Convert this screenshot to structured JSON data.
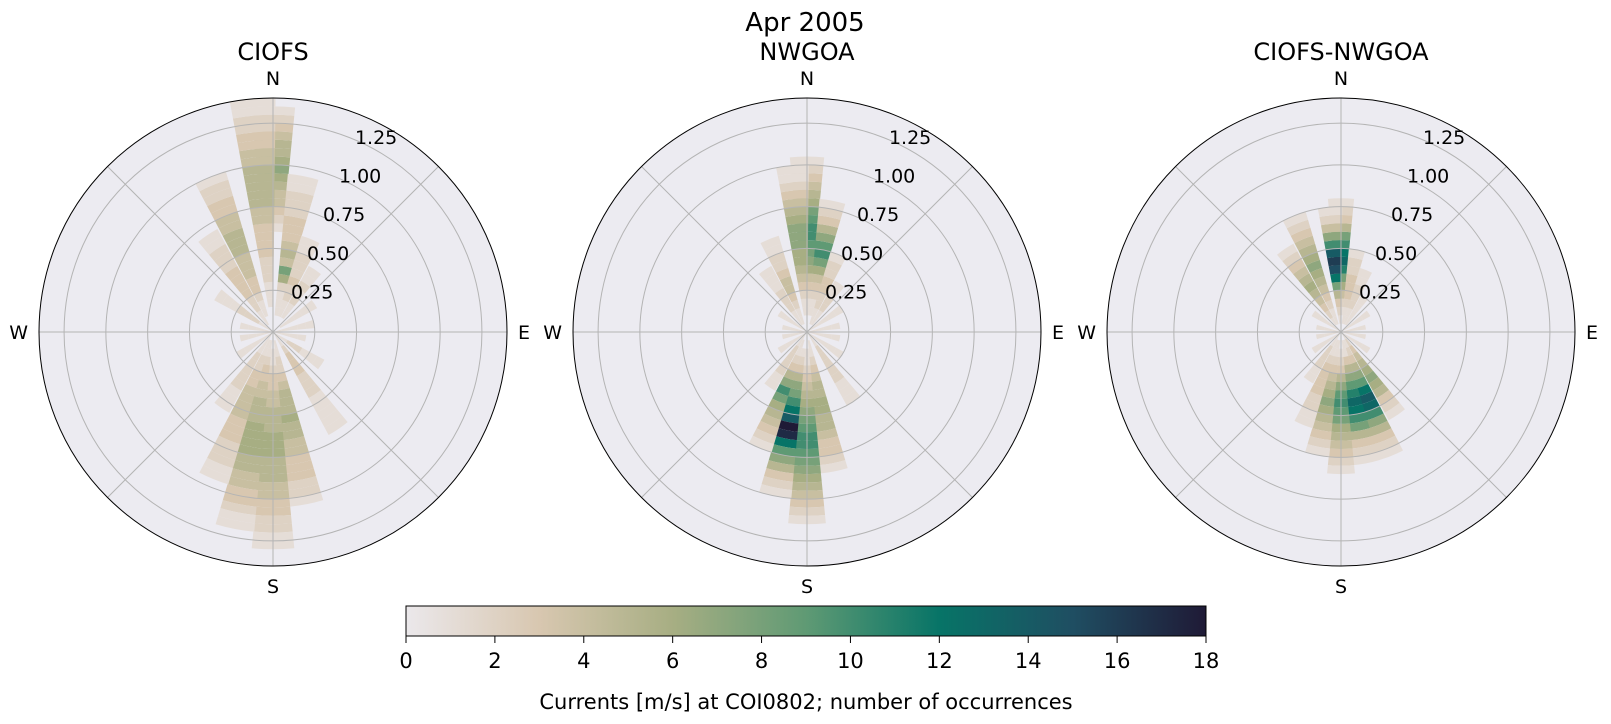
{
  "figure": {
    "suptitle": "Apr 2005"
  },
  "chart_data": [
    {
      "type": "polar-bar",
      "title": "CIOFS",
      "direction_labels": [
        "N",
        "E",
        "S",
        "W"
      ],
      "r_ticks": [
        0.25,
        0.5,
        0.75,
        1.0,
        1.25
      ],
      "r_tick_labels": [
        "0.25",
        "0.50",
        "0.75",
        "1.00",
        "1.25"
      ],
      "rlim": [
        0,
        1.4
      ],
      "grid": true,
      "bin_width_deg": 11.25,
      "speed_bin_width": 0.05,
      "counts_by_direction_deg": {
        "0": [
          0,
          0,
          0,
          0,
          0,
          0,
          0,
          0,
          0,
          0,
          0,
          0,
          1,
          2,
          3,
          4,
          4,
          5,
          6,
          7,
          6,
          5,
          5,
          4,
          3,
          2,
          1
        ],
        "355": [
          0,
          0,
          0,
          1,
          1,
          1,
          2,
          2,
          2,
          3,
          3,
          3,
          3,
          4,
          4,
          5,
          5,
          5,
          5,
          5,
          4,
          4,
          3,
          3,
          2,
          2,
          1,
          1
        ],
        "11": [
          0,
          0,
          1,
          1,
          1,
          2,
          6,
          8,
          4,
          5,
          4,
          3,
          3,
          3,
          2,
          2,
          2,
          1,
          1
        ],
        "22": [
          0,
          0,
          1,
          1,
          2,
          2,
          3,
          2,
          2,
          2,
          1,
          1
        ],
        "34": [
          0,
          0,
          1,
          1,
          2,
          1,
          2,
          1,
          1
        ],
        "56": [
          0,
          1,
          1,
          1,
          1,
          1
        ],
        "79": [
          1,
          1,
          1,
          1,
          1
        ],
        "101": [
          1,
          1,
          1,
          1
        ],
        "124": [
          1,
          1,
          2,
          2,
          1,
          1,
          1
        ],
        "146": [
          1,
          1,
          2,
          3,
          3,
          3,
          2,
          2,
          2,
          1,
          1,
          1,
          1,
          1
        ],
        "169": [
          0,
          1,
          1,
          2,
          2,
          3,
          4,
          5,
          5,
          5,
          6,
          5,
          5,
          4,
          4,
          3,
          3,
          3,
          2,
          2,
          1
        ],
        "180": [
          0,
          0,
          1,
          1,
          2,
          3,
          3,
          4,
          4,
          5,
          5,
          5,
          6,
          6,
          6,
          5,
          5,
          5,
          4,
          4,
          3,
          3,
          2,
          2,
          1,
          1
        ],
        "191": [
          0,
          1,
          1,
          2,
          3,
          3,
          4,
          4,
          5,
          5,
          5,
          6,
          6,
          6,
          6,
          5,
          5,
          4,
          4,
          3,
          3,
          2,
          1,
          1
        ],
        "202": [
          0,
          1,
          1,
          2,
          2,
          3,
          3,
          4,
          4,
          4,
          4,
          3,
          3,
          3,
          2,
          2,
          2,
          1,
          1
        ],
        "214": [
          1,
          1,
          1,
          2,
          2,
          2,
          2,
          2,
          1,
          1,
          1
        ],
        "236": [
          1,
          1,
          1,
          1,
          1
        ],
        "259": [
          1,
          1,
          1,
          1
        ],
        "281": [
          1,
          1,
          1,
          1
        ],
        "304": [
          1,
          1,
          2,
          2,
          2,
          1,
          1,
          1
        ],
        "326": [
          0,
          1,
          1,
          2,
          2,
          3,
          3,
          3,
          3,
          2,
          2,
          2,
          1,
          1
        ],
        "338": [
          0,
          0,
          1,
          1,
          2,
          3,
          3,
          4,
          4,
          4,
          5,
          5,
          5,
          4,
          4,
          3,
          3,
          2,
          2,
          1
        ]
      }
    },
    {
      "type": "polar-bar",
      "title": "NWGOA",
      "direction_labels": [
        "N",
        "E",
        "S",
        "W"
      ],
      "r_ticks": [
        0.25,
        0.5,
        0.75,
        1.0,
        1.25
      ],
      "r_tick_labels": [
        "0.25",
        "0.50",
        "0.75",
        "1.00",
        "1.25"
      ],
      "rlim": [
        0,
        1.4
      ],
      "grid": true,
      "bin_width_deg": 11.25,
      "speed_bin_width": 0.05,
      "counts_by_direction_deg": {
        "0": [
          0,
          0,
          1,
          1,
          2,
          3,
          4,
          6,
          7,
          8,
          9,
          10,
          10,
          9,
          8,
          6,
          5,
          4,
          3,
          2,
          1
        ],
        "355": [
          0,
          0,
          1,
          1,
          2,
          3,
          4,
          5,
          6,
          6,
          7,
          7,
          7,
          6,
          5,
          4,
          3,
          2,
          1,
          1
        ],
        "11": [
          0,
          0,
          1,
          1,
          2,
          3,
          4,
          6,
          8,
          10,
          9,
          7,
          5,
          3,
          2,
          1
        ],
        "22": [
          0,
          1,
          1,
          2,
          2,
          3,
          3,
          2,
          2,
          1
        ],
        "34": [
          0,
          1,
          1,
          2,
          2,
          1,
          1
        ],
        "56": [
          1,
          1,
          1,
          1,
          1
        ],
        "79": [
          1,
          1,
          1,
          1
        ],
        "101": [
          1,
          1,
          1,
          1
        ],
        "124": [
          1,
          1,
          1,
          1,
          1
        ],
        "146": [
          1,
          1,
          2,
          2,
          2,
          2,
          2,
          1,
          1,
          1
        ],
        "169": [
          0,
          1,
          1,
          2,
          3,
          4,
          5,
          5,
          6,
          6,
          5,
          5,
          4,
          3,
          3,
          2,
          1
        ],
        "180": [
          0,
          0,
          1,
          1,
          2,
          3,
          4,
          5,
          6,
          7,
          8,
          9,
          10,
          10,
          9,
          8,
          7,
          6,
          5,
          4,
          3,
          2,
          1
        ],
        "191": [
          0,
          0,
          1,
          2,
          3,
          5,
          7,
          8,
          10,
          12,
          14,
          18,
          17,
          12,
          9,
          7,
          5,
          3,
          2,
          1
        ],
        "202": [
          0,
          1,
          1,
          2,
          3,
          5,
          7,
          10,
          8,
          6,
          5,
          4,
          3,
          2,
          1
        ],
        "214": [
          1,
          1,
          2,
          2,
          2,
          2,
          1,
          1
        ],
        "236": [
          1,
          1,
          1,
          1
        ],
        "259": [
          1,
          1,
          1
        ],
        "281": [
          1,
          1,
          1
        ],
        "304": [
          1,
          1,
          1,
          1
        ],
        "326": [
          0,
          1,
          1,
          2,
          2,
          2,
          1,
          1,
          1
        ],
        "338": [
          0,
          1,
          1,
          2,
          3,
          4,
          4,
          3,
          2,
          2,
          1,
          1
        ]
      }
    },
    {
      "type": "polar-bar",
      "title": "CIOFS-NWGOA",
      "direction_labels": [
        "N",
        "E",
        "S",
        "W"
      ],
      "r_ticks": [
        0.25,
        0.5,
        0.75,
        1.0,
        1.25
      ],
      "r_tick_labels": [
        "0.25",
        "0.50",
        "0.75",
        "1.00",
        "1.25"
      ],
      "rlim": [
        0,
        1.4
      ],
      "grid": true,
      "bin_width_deg": 11.25,
      "speed_bin_width": 0.05,
      "counts_by_direction_deg": {
        "0": [
          0,
          0,
          1,
          2,
          4,
          6,
          8,
          11,
          13,
          12,
          10,
          8,
          5,
          3,
          2,
          1
        ],
        "355": [
          0,
          1,
          2,
          3,
          5,
          8,
          12,
          15,
          16,
          14,
          10,
          7,
          4,
          2,
          1
        ],
        "11": [
          0,
          1,
          1,
          2,
          3,
          3,
          3,
          2,
          2,
          1
        ],
        "22": [
          0,
          1,
          1,
          2,
          2,
          2,
          1,
          1
        ],
        "34": [
          0,
          1,
          1,
          1,
          1
        ],
        "56": [
          1,
          1,
          1,
          1
        ],
        "79": [
          1,
          1,
          1
        ],
        "101": [
          1,
          1,
          1
        ],
        "124": [
          1,
          1,
          1,
          1
        ],
        "146": [
          1,
          2,
          3,
          4,
          5,
          6,
          7,
          6,
          5,
          3,
          2,
          1
        ],
        "158": [
          0,
          1,
          2,
          3,
          5,
          7,
          9,
          12,
          14,
          13,
          10,
          7,
          5,
          3,
          2,
          1
        ],
        "169": [
          0,
          1,
          1,
          3,
          5,
          7,
          9,
          11,
          13,
          12,
          10,
          8,
          5,
          3,
          2,
          1
        ],
        "180": [
          0,
          0,
          1,
          2,
          3,
          5,
          7,
          9,
          10,
          9,
          8,
          6,
          5,
          4,
          3,
          2,
          1
        ],
        "191": [
          0,
          1,
          1,
          2,
          3,
          4,
          5,
          6,
          7,
          6,
          5,
          4,
          3,
          2,
          1
        ],
        "202": [
          0,
          1,
          1,
          2,
          3,
          3,
          3,
          3,
          2,
          2,
          1,
          1
        ],
        "214": [
          1,
          1,
          2,
          2,
          2,
          1,
          1
        ],
        "236": [
          1,
          1,
          1,
          1
        ],
        "259": [
          1,
          1,
          1
        ],
        "281": [
          1,
          1,
          1
        ],
        "304": [
          1,
          1,
          1,
          1
        ],
        "326": [
          0,
          1,
          2,
          3,
          4,
          5,
          6,
          5,
          4,
          3,
          2,
          1
        ],
        "338": [
          0,
          1,
          1,
          2,
          3,
          4,
          5,
          6,
          7,
          6,
          5,
          4,
          3,
          2,
          1
        ]
      }
    },
    {
      "type": "colorbar",
      "label": "Currents [m/s] at COI0802; number of occurrences",
      "range": [
        0,
        18
      ],
      "ticks": [
        0,
        2,
        4,
        6,
        8,
        10,
        12,
        14,
        16,
        18
      ],
      "tick_labels": [
        "0",
        "2",
        "4",
        "6",
        "8",
        "10",
        "12",
        "14",
        "16",
        "18"
      ],
      "colormap_stops": [
        "#ebe8eb",
        "#d8c7b0",
        "#a7ae83",
        "#5f9a74",
        "#077467",
        "#1f4e62",
        "#1f1a36"
      ]
    }
  ],
  "style": {
    "axes_background": "#ecebf1",
    "grid_color": "#b4b4b4"
  }
}
